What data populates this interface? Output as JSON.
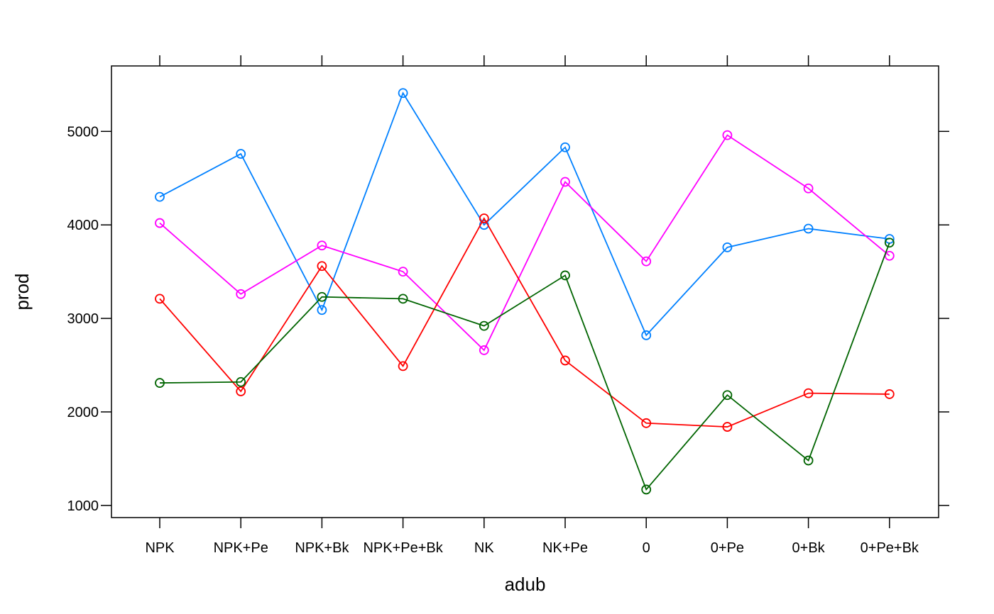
{
  "chart_data": {
    "type": "line",
    "xlabel": "adub",
    "ylabel": "prod",
    "categories": [
      "NPK",
      "NPK+Pe",
      "NPK+Bk",
      "NPK+Pe+Bk",
      "NK",
      "NK+Pe",
      "0",
      "0+Pe",
      "0+Bk",
      "0+Pe+Bk"
    ],
    "ylim": [
      870,
      5700
    ],
    "yticks": [
      1000,
      2000,
      3000,
      4000,
      5000
    ],
    "grid": false,
    "legend": "none",
    "marker": "open-circle",
    "series": [
      {
        "color": "#0080ff",
        "values": [
          4300,
          4760,
          3090,
          5410,
          4000,
          4830,
          2820,
          3760,
          3960,
          3850
        ]
      },
      {
        "color": "#ff00ff",
        "values": [
          4020,
          3260,
          3780,
          3500,
          2660,
          4460,
          3610,
          4960,
          4390,
          3670
        ]
      },
      {
        "color": "#ff0000",
        "values": [
          3210,
          2220,
          3560,
          2490,
          4070,
          2550,
          1880,
          1840,
          2200,
          2190
        ]
      },
      {
        "color": "#006400",
        "values": [
          2310,
          2320,
          3230,
          3210,
          2920,
          3460,
          1170,
          2180,
          1480,
          3810
        ]
      }
    ]
  }
}
